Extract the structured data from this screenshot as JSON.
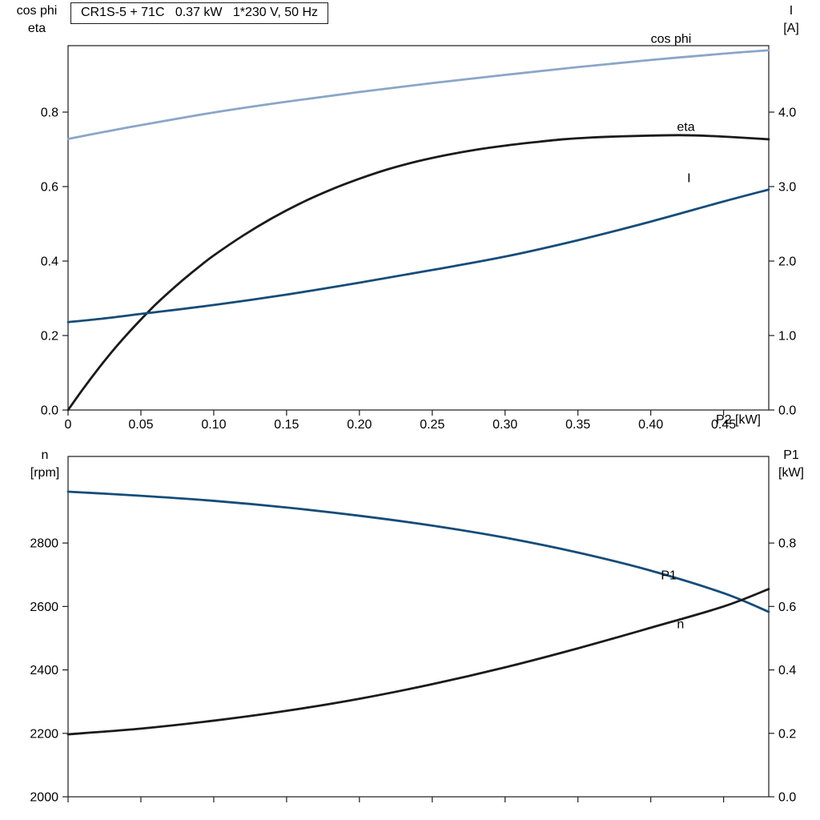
{
  "chart_data": [
    {
      "id": "top",
      "type": "line",
      "title": "CR1S-5 + 71C   0.37 kW   1*230 V, 50 Hz",
      "left_label_lines": [
        "cos phi",
        "eta"
      ],
      "right_label_lines": [
        "I",
        "[A]"
      ],
      "grid": false,
      "x": {
        "min": 0,
        "max": 0.481,
        "label": "P2 [kW]",
        "show_tick_labels": true,
        "ticks": [
          {
            "v": 0,
            "t": "0"
          },
          {
            "v": 0.05,
            "t": "0.05"
          },
          {
            "v": 0.1,
            "t": "0.10"
          },
          {
            "v": 0.15,
            "t": "0.15"
          },
          {
            "v": 0.2,
            "t": "0.20"
          },
          {
            "v": 0.25,
            "t": "0.25"
          },
          {
            "v": 0.3,
            "t": "0.30"
          },
          {
            "v": 0.35,
            "t": "0.35"
          },
          {
            "v": 0.4,
            "t": "0.40"
          },
          {
            "v": 0.45,
            "t": "0.45"
          }
        ]
      },
      "left": {
        "min": 0,
        "max": 0.9785,
        "ticks": [
          {
            "v": 0,
            "t": "0.0"
          },
          {
            "v": 0.2,
            "t": "0.2"
          },
          {
            "v": 0.4,
            "t": "0.4"
          },
          {
            "v": 0.6,
            "t": "0.6"
          },
          {
            "v": 0.8,
            "t": "0.8"
          }
        ]
      },
      "right": {
        "min": 0,
        "max": 4.8925,
        "ticks": [
          {
            "v": 0,
            "t": "0.0"
          },
          {
            "v": 1,
            "t": "1.0"
          },
          {
            "v": 2,
            "t": "2.0"
          },
          {
            "v": 3,
            "t": "3.0"
          },
          {
            "v": 4,
            "t": "4.0"
          }
        ]
      },
      "series": [
        {
          "name": "cos phi",
          "slug": "cos-phi-curve",
          "axis": "left",
          "color": "#8BA6C9",
          "width": 2.8,
          "label": {
            "text": "cos phi",
            "x": 0.4,
            "v": 0.998
          },
          "points": [
            [
              0,
              0.728
            ],
            [
              0.025,
              0.747
            ],
            [
              0.05,
              0.765
            ],
            [
              0.1,
              0.799
            ],
            [
              0.15,
              0.828
            ],
            [
              0.2,
              0.854
            ],
            [
              0.25,
              0.878
            ],
            [
              0.3,
              0.9
            ],
            [
              0.35,
              0.921
            ],
            [
              0.4,
              0.94
            ],
            [
              0.45,
              0.957
            ],
            [
              0.481,
              0.966
            ]
          ]
        },
        {
          "name": "eta",
          "slug": "eta-curve",
          "axis": "left",
          "color": "#1a1a1a",
          "width": 2.8,
          "label": {
            "text": "eta",
            "x": 0.418,
            "v": 0.762
          },
          "points": [
            [
              0,
              0
            ],
            [
              0.01,
              0.055
            ],
            [
              0.02,
              0.107
            ],
            [
              0.03,
              0.156
            ],
            [
              0.04,
              0.201
            ],
            [
              0.05,
              0.243
            ],
            [
              0.06,
              0.283
            ],
            [
              0.07,
              0.319
            ],
            [
              0.08,
              0.353
            ],
            [
              0.09,
              0.385
            ],
            [
              0.1,
              0.415
            ],
            [
              0.12,
              0.468
            ],
            [
              0.14,
              0.515
            ],
            [
              0.16,
              0.556
            ],
            [
              0.18,
              0.591
            ],
            [
              0.2,
              0.621
            ],
            [
              0.22,
              0.647
            ],
            [
              0.24,
              0.668
            ],
            [
              0.26,
              0.685
            ],
            [
              0.28,
              0.699
            ],
            [
              0.3,
              0.71
            ],
            [
              0.32,
              0.719
            ],
            [
              0.34,
              0.727
            ],
            [
              0.36,
              0.732
            ],
            [
              0.38,
              0.735
            ],
            [
              0.4,
              0.737
            ],
            [
              0.42,
              0.738
            ],
            [
              0.44,
              0.736
            ],
            [
              0.46,
              0.732
            ],
            [
              0.481,
              0.727
            ]
          ]
        },
        {
          "name": "I",
          "slug": "current-curve",
          "axis": "right",
          "color": "#154C79",
          "width": 2.8,
          "label": {
            "text": "I",
            "x": 0.425,
            "v": 3.12
          },
          "points": [
            [
              0,
              1.18
            ],
            [
              0.025,
              1.23
            ],
            [
              0.05,
              1.29
            ],
            [
              0.1,
              1.41
            ],
            [
              0.15,
              1.55
            ],
            [
              0.2,
              1.71
            ],
            [
              0.25,
              1.88
            ],
            [
              0.3,
              2.06
            ],
            [
              0.35,
              2.28
            ],
            [
              0.4,
              2.53
            ],
            [
              0.45,
              2.8
            ],
            [
              0.481,
              2.96
            ]
          ]
        }
      ]
    },
    {
      "id": "bottom",
      "type": "line",
      "title": "",
      "left_label_lines": [
        "n",
        "[rpm]"
      ],
      "right_label_lines": [
        "P1",
        "[kW]"
      ],
      "grid": false,
      "x": {
        "min": 0,
        "max": 0.481,
        "label": "",
        "show_tick_labels": false,
        "ticks": [
          {
            "v": 0,
            "t": ""
          },
          {
            "v": 0.05,
            "t": ""
          },
          {
            "v": 0.1,
            "t": ""
          },
          {
            "v": 0.15,
            "t": ""
          },
          {
            "v": 0.2,
            "t": ""
          },
          {
            "v": 0.25,
            "t": ""
          },
          {
            "v": 0.3,
            "t": ""
          },
          {
            "v": 0.35,
            "t": ""
          },
          {
            "v": 0.4,
            "t": ""
          },
          {
            "v": 0.45,
            "t": ""
          }
        ]
      },
      "left": {
        "min": 2000,
        "max": 3073,
        "ticks": [
          {
            "v": 2000,
            "t": "2000"
          },
          {
            "v": 2200,
            "t": "2200"
          },
          {
            "v": 2400,
            "t": "2400"
          },
          {
            "v": 2600,
            "t": "2600"
          },
          {
            "v": 2800,
            "t": "2800"
          }
        ]
      },
      "right": {
        "min": 0,
        "max": 1.073,
        "ticks": [
          {
            "v": 0,
            "t": "0.0"
          },
          {
            "v": 0.2,
            "t": "0.2"
          },
          {
            "v": 0.4,
            "t": "0.4"
          },
          {
            "v": 0.6,
            "t": "0.6"
          },
          {
            "v": 0.8,
            "t": "0.8"
          }
        ]
      },
      "series": [
        {
          "name": "n",
          "slug": "speed-curve",
          "axis": "left",
          "color": "#154C79",
          "width": 2.8,
          "label": {
            "text": "n",
            "x": 0.418,
            "v": 2546
          },
          "points": [
            [
              0,
              2962
            ],
            [
              0.05,
              2949
            ],
            [
              0.1,
              2933
            ],
            [
              0.15,
              2912
            ],
            [
              0.2,
              2886
            ],
            [
              0.25,
              2855
            ],
            [
              0.3,
              2817
            ],
            [
              0.35,
              2770
            ],
            [
              0.4,
              2713
            ],
            [
              0.45,
              2642
            ],
            [
              0.481,
              2583
            ]
          ]
        },
        {
          "name": "P1",
          "slug": "p1-curve",
          "axis": "right",
          "color": "#1a1a1a",
          "width": 2.8,
          "label": {
            "text": "P1",
            "x": 0.407,
            "v": 0.7
          },
          "points": [
            [
              0,
              0.197
            ],
            [
              0.05,
              0.215
            ],
            [
              0.1,
              0.24
            ],
            [
              0.15,
              0.271
            ],
            [
              0.2,
              0.309
            ],
            [
              0.25,
              0.355
            ],
            [
              0.3,
              0.408
            ],
            [
              0.35,
              0.468
            ],
            [
              0.4,
              0.533
            ],
            [
              0.45,
              0.6
            ],
            [
              0.481,
              0.655
            ]
          ]
        }
      ]
    }
  ]
}
